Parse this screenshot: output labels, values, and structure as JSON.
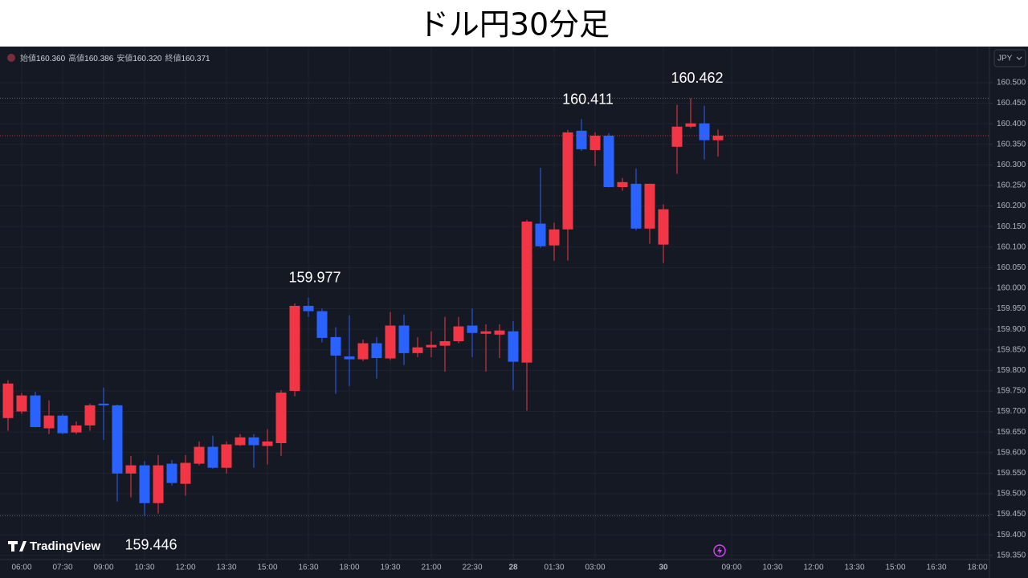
{
  "chart_data": {
    "type": "candlestick",
    "title": "ドル円30分足",
    "currency": "JPY",
    "watermark": "TradingView",
    "ohlc_legend": [
      {
        "label": "始値",
        "value": "160.360"
      },
      {
        "label": "高値",
        "value": "160.386"
      },
      {
        "label": "安値",
        "value": "160.320"
      },
      {
        "label": "終値",
        "value": "160.371"
      }
    ],
    "categories": [
      null,
      "06:00",
      null,
      null,
      "07:30",
      null,
      null,
      "09:00",
      null,
      null,
      "10:30",
      null,
      null,
      "12:00",
      null,
      null,
      "13:30",
      null,
      null,
      "15:00",
      null,
      null,
      "16:30",
      null,
      null,
      "18:00",
      null,
      null,
      "19:30",
      null,
      null,
      "21:00",
      null,
      null,
      "22:30",
      null,
      null,
      "28",
      null,
      null,
      "01:30",
      null,
      null,
      "03:00",
      null,
      null,
      null,
      null,
      "30",
      null,
      null,
      null,
      null,
      "09:00",
      null,
      null,
      "10:30",
      null,
      null,
      "12:00",
      null,
      null,
      "13:30",
      null,
      null,
      "15:00",
      null,
      null,
      "16:30",
      null,
      null,
      "18:00"
    ],
    "open": [
      159.684,
      159.7,
      159.739,
      159.659,
      159.69,
      159.649,
      159.666,
      159.719,
      159.715,
      159.549,
      159.569,
      159.477,
      159.573,
      159.524,
      159.573,
      159.614,
      159.563,
      159.618,
      159.637,
      159.616,
      159.623,
      159.75,
      159.957,
      159.944,
      159.881,
      159.834,
      159.827,
      159.866,
      159.829,
      159.909,
      159.842,
      159.856,
      159.86,
      159.871,
      159.909,
      159.889,
      159.887,
      159.895,
      159.819,
      160.157,
      160.104,
      160.143,
      160.383,
      160.336,
      160.371,
      160.246,
      160.254,
      160.145,
      160.106,
      160.344,
      160.393,
      160.401,
      160.36,
      null,
      null,
      null,
      null,
      null,
      null,
      null,
      null,
      null,
      null,
      null,
      null,
      null,
      null,
      null,
      null,
      null,
      null,
      null
    ],
    "high": [
      159.776,
      159.745,
      159.748,
      159.727,
      159.694,
      159.676,
      159.719,
      159.758,
      159.717,
      159.592,
      159.579,
      159.594,
      159.582,
      159.594,
      159.627,
      159.641,
      159.627,
      159.645,
      159.645,
      159.657,
      159.752,
      159.963,
      159.977,
      159.95,
      159.905,
      159.934,
      159.875,
      159.881,
      159.942,
      159.936,
      159.881,
      159.895,
      159.93,
      159.93,
      159.95,
      159.912,
      159.912,
      159.92,
      160.166,
      160.293,
      160.159,
      160.385,
      160.411,
      160.379,
      160.377,
      160.268,
      160.291,
      160.254,
      160.204,
      160.446,
      160.462,
      160.444,
      160.386,
      null,
      null,
      null,
      null,
      null,
      null,
      null,
      null,
      null,
      null,
      null,
      null,
      null,
      null,
      null,
      null,
      null,
      null,
      null
    ],
    "low": [
      159.653,
      159.694,
      159.661,
      159.645,
      159.645,
      159.645,
      159.653,
      159.631,
      159.481,
      159.491,
      159.446,
      159.452,
      159.52,
      159.495,
      159.569,
      159.561,
      159.549,
      159.616,
      159.563,
      159.571,
      159.592,
      159.737,
      159.93,
      159.868,
      159.743,
      159.762,
      159.823,
      159.78,
      159.825,
      159.813,
      159.832,
      159.832,
      159.797,
      159.866,
      159.832,
      159.797,
      159.83,
      159.752,
      159.702,
      160.098,
      160.067,
      160.067,
      160.334,
      160.297,
      160.245,
      160.237,
      160.141,
      160.108,
      160.061,
      160.278,
      160.389,
      160.313,
      160.32,
      null,
      null,
      null,
      null,
      null,
      null,
      null,
      null,
      null,
      null,
      null,
      null,
      null,
      null,
      null,
      null,
      null,
      null,
      null
    ],
    "close": [
      159.768,
      159.739,
      159.662,
      159.69,
      159.647,
      159.666,
      159.715,
      159.715,
      159.549,
      159.569,
      159.477,
      159.569,
      159.526,
      159.575,
      159.614,
      159.563,
      159.62,
      159.637,
      159.618,
      159.627,
      159.746,
      159.957,
      159.944,
      159.879,
      159.836,
      159.827,
      159.866,
      159.83,
      159.909,
      159.842,
      159.856,
      159.862,
      159.871,
      159.907,
      159.891,
      159.895,
      159.897,
      159.821,
      160.162,
      160.102,
      160.143,
      160.379,
      160.338,
      160.371,
      160.246,
      160.258,
      160.145,
      160.254,
      160.192,
      160.393,
      160.401,
      160.36,
      160.371,
      null,
      null,
      null,
      null,
      null,
      null,
      null,
      null,
      null,
      null,
      null,
      null,
      null,
      null,
      null,
      null,
      null,
      null,
      null
    ],
    "up_color": "#f23645",
    "down_color": "#2962ff",
    "ylim": [
      159.33,
      160.58
    ],
    "yticks": [
      {
        "value": 159.35,
        "label": "159.350"
      },
      {
        "value": 159.4,
        "label": "159.400"
      },
      {
        "value": 159.45,
        "label": "159.450"
      },
      {
        "value": 159.5,
        "label": "159.500"
      },
      {
        "value": 159.55,
        "label": "159.550"
      },
      {
        "value": 159.6,
        "label": "159.600"
      },
      {
        "value": 159.65,
        "label": "159.650"
      },
      {
        "value": 159.7,
        "label": "159.700"
      },
      {
        "value": 159.75,
        "label": "159.750"
      },
      {
        "value": 159.8,
        "label": "159.800"
      },
      {
        "value": 159.85,
        "label": "159.850"
      },
      {
        "value": 159.9,
        "label": "159.900"
      },
      {
        "value": 159.95,
        "label": "159.950"
      },
      {
        "value": 160,
        "label": "160.000"
      },
      {
        "value": 160.05,
        "label": "160.050"
      },
      {
        "value": 160.1,
        "label": "160.100"
      },
      {
        "value": 160.15,
        "label": "160.150"
      },
      {
        "value": 160.2,
        "label": "160.200"
      },
      {
        "value": 160.25,
        "label": "160.250"
      },
      {
        "value": 160.3,
        "label": "160.300"
      },
      {
        "value": 160.35,
        "label": "160.350"
      },
      {
        "value": 160.4,
        "label": "160.400"
      },
      {
        "value": 160.45,
        "label": "160.450"
      },
      {
        "value": 160.5,
        "label": "160.500"
      }
    ],
    "grid": true,
    "annotations": [
      {
        "label": "160.462",
        "value": 160.462,
        "line": true
      },
      {
        "label": "160.411",
        "value": 160.411
      },
      {
        "label": "159.977",
        "value": 159.977
      },
      {
        "label": "159.446",
        "value": 159.446,
        "line": true
      }
    ]
  }
}
